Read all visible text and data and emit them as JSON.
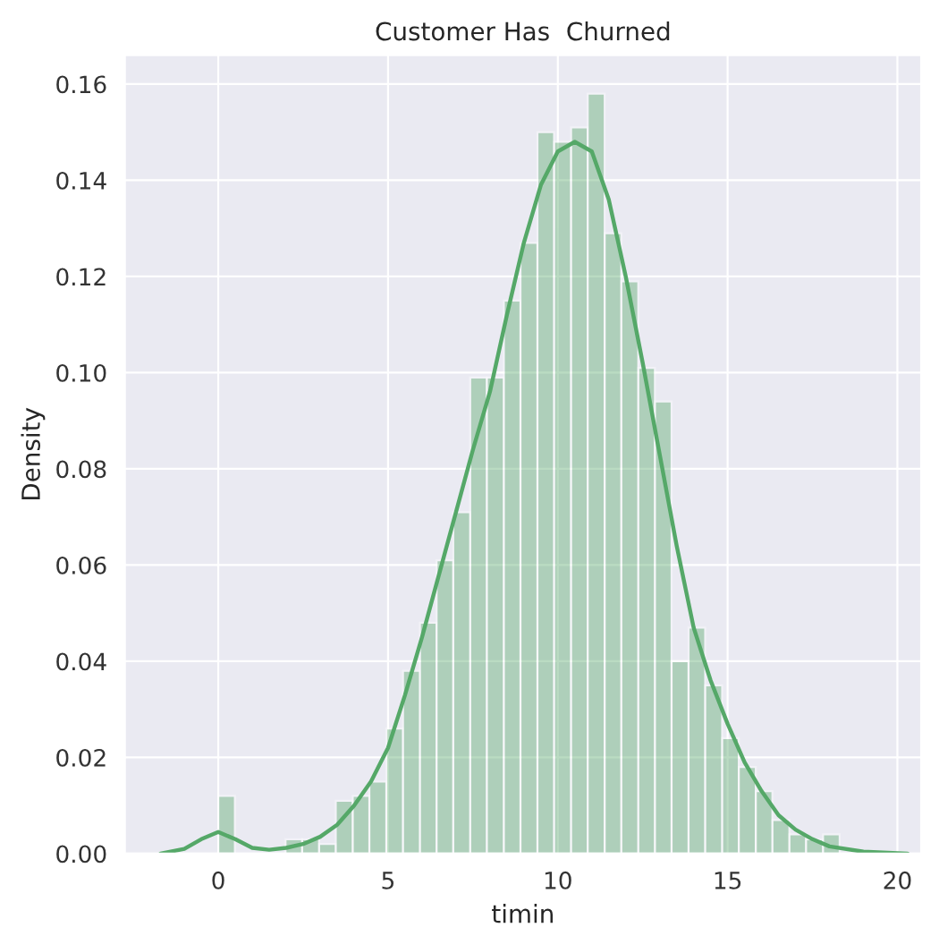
{
  "chart_data": {
    "type": "histogram",
    "title": "Customer Has  Churned",
    "xlabel": "timin",
    "ylabel": "Density",
    "bins": [
      0,
      0.49,
      0.99,
      1.48,
      1.98,
      2.47,
      2.97,
      3.46,
      3.96,
      4.45,
      4.95,
      5.44,
      5.94,
      6.43,
      6.92,
      7.42,
      7.91,
      8.41,
      8.9,
      9.4,
      9.89,
      10.39,
      10.88,
      11.38,
      11.87,
      12.37,
      12.86,
      13.35,
      13.85,
      14.34,
      14.84,
      15.33,
      15.83,
      16.32,
      16.82,
      17.31,
      17.81,
      18.3
    ],
    "values": [
      0.012,
      0,
      0,
      0,
      0.003,
      0.003,
      0.002,
      0.011,
      0.012,
      0.015,
      0.026,
      0.038,
      0.048,
      0.061,
      0.071,
      0.099,
      0.099,
      0.115,
      0.127,
      0.15,
      0.148,
      0.151,
      0.158,
      0.129,
      0.119,
      0.101,
      0.094,
      0.04,
      0.047,
      0.035,
      0.024,
      0.018,
      0.013,
      0.007,
      0.004,
      0.003,
      0.004
    ],
    "color": "#55a868",
    "series": [
      {
        "type": "line",
        "color": "#55a868",
        "x": [
          -1.7,
          -1,
          -0.5,
          0,
          0.5,
          1,
          1.5,
          2,
          2.5,
          3,
          3.5,
          4,
          4.5,
          5,
          5.5,
          6,
          6.5,
          7,
          7.5,
          8,
          8.5,
          9,
          9.5,
          10,
          10.5,
          11,
          11.5,
          12,
          12.5,
          13,
          13.5,
          14,
          14.5,
          15,
          15.5,
          16,
          16.5,
          17,
          17.5,
          18,
          19,
          20.3
        ],
        "values": [
          0,
          0.001,
          0.003,
          0.0045,
          0.003,
          0.0012,
          0.0008,
          0.0012,
          0.002,
          0.0035,
          0.006,
          0.01,
          0.015,
          0.022,
          0.033,
          0.045,
          0.058,
          0.071,
          0.084,
          0.096,
          0.112,
          0.127,
          0.139,
          0.146,
          0.148,
          0.146,
          0.136,
          0.12,
          0.102,
          0.083,
          0.064,
          0.047,
          0.036,
          0.027,
          0.019,
          0.013,
          0.008,
          0.005,
          0.003,
          0.0015,
          0.0004,
          0
        ]
      }
    ],
    "xlim": [
      -2.75,
      20.7
    ],
    "ylim": [
      0,
      0.166
    ],
    "xticks": [
      0,
      5,
      10,
      15,
      20
    ],
    "yticks": [
      {
        "value": 0,
        "label": "0.00"
      },
      {
        "value": 0.02,
        "label": "0.02"
      },
      {
        "value": 0.04,
        "label": "0.04"
      },
      {
        "value": 0.06,
        "label": "0.06"
      },
      {
        "value": 0.08,
        "label": "0.08"
      },
      {
        "value": 0.1,
        "label": "0.10"
      },
      {
        "value": 0.12,
        "label": "0.12"
      },
      {
        "value": 0.14,
        "label": "0.14"
      },
      {
        "value": 0.16,
        "label": "0.16"
      }
    ],
    "grid": true
  }
}
